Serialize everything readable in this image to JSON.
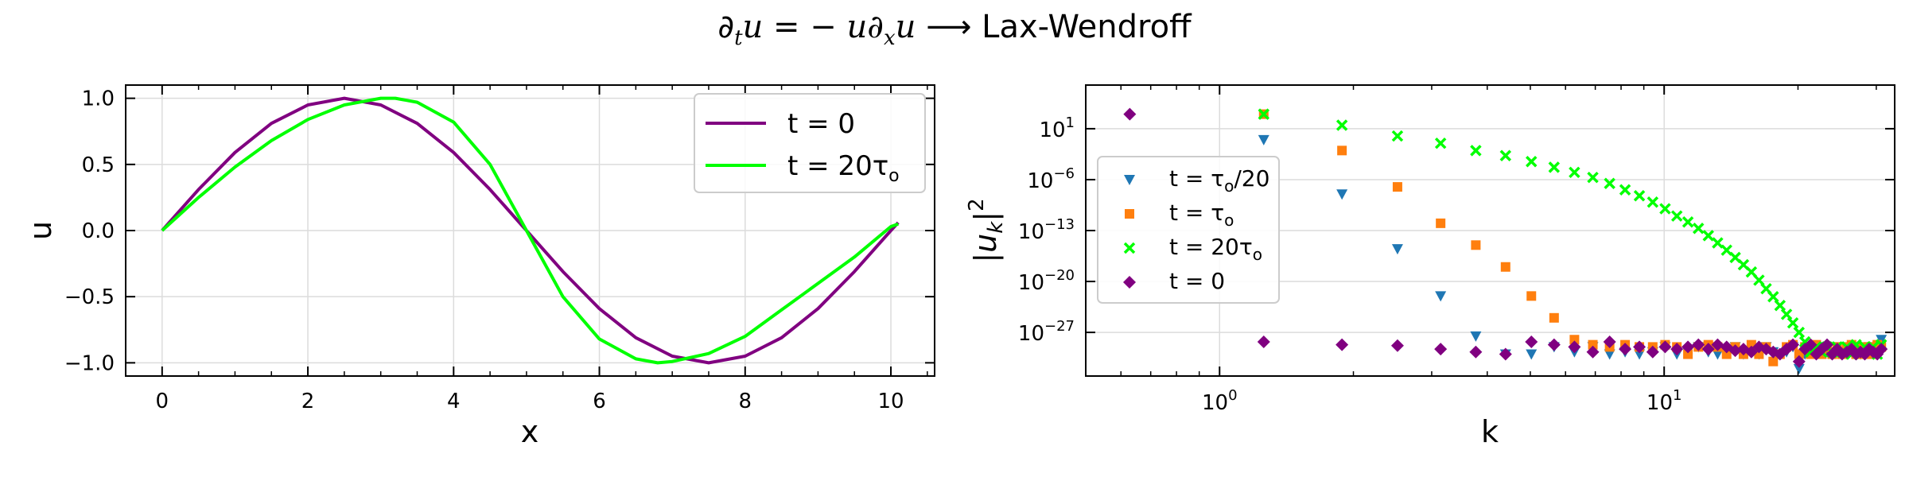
{
  "figure_title": {
    "lhs": "∂",
    "lhs_sub": "t",
    "lhs_var": "u",
    "eq": " = − ",
    "rhs_var1": "u∂",
    "rhs_sub": "x",
    "rhs_var2": "u",
    "arrow": "⟶",
    "method": "Lax-Wendroff"
  },
  "chart_data": [
    {
      "type": "line",
      "xlabel": "x",
      "ylabel": "u",
      "xlim": [
        -0.5,
        10.6
      ],
      "ylim": [
        -1.1,
        1.1
      ],
      "xticks": [
        0,
        2,
        4,
        6,
        8,
        10
      ],
      "xtick_labels": [
        "0",
        "2",
        "4",
        "6",
        "8",
        "10"
      ],
      "yticks": [
        1.0,
        0.5,
        0.0,
        -0.5,
        -1.0
      ],
      "ytick_labels": [
        "1.0",
        "0.5",
        "0.0",
        "−0.5",
        "−1.0"
      ],
      "grid": true,
      "legend_placement": "top-right",
      "series": [
        {
          "name": "t = 0",
          "color": "#800080",
          "x": [
            0,
            0.5,
            1,
            1.5,
            2,
            2.5,
            3,
            3.5,
            4,
            4.5,
            5,
            5.5,
            6,
            6.5,
            7,
            7.5,
            8,
            8.5,
            9,
            9.5,
            10,
            10.1
          ],
          "y": [
            0,
            0.31,
            0.59,
            0.81,
            0.95,
            1.0,
            0.95,
            0.81,
            0.59,
            0.31,
            0.0,
            -0.31,
            -0.59,
            -0.81,
            -0.95,
            -1.0,
            -0.95,
            -0.81,
            -0.59,
            -0.31,
            0.0,
            0.06
          ]
        },
        {
          "name": "t = 20τo",
          "color": "#00ff00",
          "x": [
            0,
            0.5,
            1,
            1.5,
            2,
            2.5,
            3,
            3.2,
            3.5,
            4,
            4.5,
            5,
            5.5,
            6,
            6.5,
            6.8,
            7,
            7.5,
            8,
            8.5,
            9,
            9.5,
            10,
            10.1
          ],
          "y": [
            0,
            0.25,
            0.48,
            0.68,
            0.84,
            0.95,
            1.0,
            1.0,
            0.97,
            0.82,
            0.5,
            0.0,
            -0.5,
            -0.82,
            -0.97,
            -1.0,
            -0.99,
            -0.93,
            -0.8,
            -0.6,
            -0.4,
            -0.2,
            0.03,
            0.05
          ]
        }
      ]
    },
    {
      "type": "scatter",
      "xlabel": "k",
      "ylabel": "|uk|2",
      "xscale": "log",
      "yscale": "log",
      "xlim": [
        0.5,
        33
      ],
      "ylim": [
        1e-33,
        10000000.0
      ],
      "xtick_labels": [
        "10^0",
        "10^1"
      ],
      "ytick_labels": [
        "10^1",
        "10^-6",
        "10^-13",
        "10^-20",
        "10^-27"
      ],
      "grid": true,
      "legend_placement": "center-left",
      "series": [
        {
          "name": "t = τo/20",
          "marker": "triangle-down",
          "color": "#1f77b4",
          "x": [
            1.257,
            1.885,
            2.513,
            3.142,
            3.77,
            4.398,
            5.027,
            5.655,
            6.283,
            6.912,
            7.54,
            8.168,
            8.796,
            9.425,
            10.05,
            10.68,
            11.31,
            11.94,
            12.57,
            13.19,
            13.82,
            14.45,
            15.08,
            15.71,
            16.34,
            16.96,
            17.59,
            18.22,
            18.85,
            19.48,
            20.11,
            20.73,
            21.36,
            21.99,
            22.62,
            23.25,
            23.88,
            24.5,
            25.13,
            25.76,
            26.39,
            27.02,
            27.65,
            28.27,
            28.9,
            29.53,
            30.16,
            30.79
          ],
          "y": [
            0.3,
            1e-08,
            3e-16,
            1e-22,
            3e-28,
            1e-30,
            1e-30,
            1e-29,
            2e-30,
            1e-29,
            1e-30,
            2e-30,
            1e-30,
            2e-30,
            1e-29,
            1e-30,
            2e-30,
            1e-29,
            2e-30,
            1e-30,
            2e-30,
            1e-29,
            1e-30,
            2e-30,
            1e-30,
            1e-29,
            2e-30,
            1e-30,
            2e-30,
            1e-29,
            1e-32,
            1e-30,
            2e-30,
            1e-30,
            1e-29,
            2e-30,
            1e-30,
            1e-29,
            2e-30,
            1e-30,
            2e-30,
            1e-29,
            1e-30,
            2e-30,
            1e-29,
            1e-30,
            2e-30,
            1e-28
          ]
        },
        {
          "name": "t = τo",
          "marker": "square",
          "color": "#ff7f0e",
          "x": [
            1.257,
            1.885,
            2.513,
            3.142,
            3.77,
            4.398,
            5.027,
            5.655,
            6.283,
            6.912,
            7.54,
            8.168,
            8.796,
            9.425,
            10.05,
            10.68,
            11.31,
            11.94,
            12.57,
            13.19,
            13.82,
            14.45,
            15.08,
            15.71,
            16.34,
            16.96,
            17.59,
            18.22,
            18.85,
            19.48,
            20.11,
            20.73,
            21.36,
            21.99,
            22.62,
            23.25,
            23.88,
            24.5,
            25.13,
            25.76,
            26.39,
            27.02,
            27.65,
            28.27,
            28.9,
            29.53,
            30.16,
            30.79
          ],
          "y": [
            1000.0,
            0.01,
            1e-07,
            1e-12,
            1e-15,
            1e-18,
            1e-22,
            1e-25,
            1e-28,
            2e-29,
            1e-29,
            2e-29,
            1e-29,
            1e-29,
            2e-29,
            1e-29,
            1e-30,
            1e-29,
            2e-29,
            1e-29,
            1e-30,
            1e-29,
            1e-30,
            2e-29,
            1e-30,
            1e-29,
            1e-31,
            1e-30,
            1e-29,
            2e-29,
            1e-30,
            1e-29,
            1e-30,
            2e-29,
            1e-30,
            1e-29,
            1e-30,
            1e-29,
            1e-30,
            1e-29,
            2e-29,
            1e-30,
            1e-29,
            1e-30,
            1e-29,
            1e-30,
            2e-29,
            1e-29
          ]
        },
        {
          "name": "t = 20τo",
          "marker": "x",
          "color": "#00ff00",
          "x": [
            1.257,
            1.885,
            2.513,
            3.142,
            3.77,
            4.398,
            5.027,
            5.655,
            6.283,
            6.912,
            7.54,
            8.168,
            8.796,
            9.425,
            10.05,
            10.68,
            11.31,
            11.94,
            12.57,
            13.19,
            13.82,
            14.45,
            15.08,
            15.71,
            16.34,
            16.96,
            17.59,
            18.22,
            18.85,
            19.48,
            20.11,
            20.73,
            21.36,
            21.99,
            22.62,
            23.25,
            23.88,
            24.5,
            25.13,
            25.76,
            26.39,
            27.02,
            27.65,
            28.27,
            28.9,
            29.53,
            30.16,
            30.79
          ],
          "y": [
            1000.0,
            30.0,
            1,
            0.1,
            0.01,
            0.002,
            0.0003,
            5e-05,
            1e-05,
            2e-06,
            3e-07,
            4e-08,
            6e-09,
            8e-10,
            1e-10,
            1e-11,
            1.5e-12,
            2e-13,
            2e-14,
            2e-15,
            2e-16,
            2e-17,
            2e-18,
            2e-19,
            1.5e-20,
            1e-21,
            8e-23,
            5e-24,
            3e-25,
            2e-26,
            1e-27,
            5e-29,
            2e-30,
            1e-29,
            2e-30,
            1e-29,
            2e-30,
            1e-29,
            2e-30,
            1e-29,
            1e-30,
            2e-29,
            1e-30,
            1e-29,
            2e-30,
            1e-29,
            1e-30,
            2e-29
          ]
        },
        {
          "name": "t = 0",
          "marker": "diamond",
          "color": "#800080",
          "x": [
            0.628,
            1.257,
            1.885,
            2.513,
            3.142,
            3.77,
            4.398,
            5.027,
            5.655,
            6.283,
            6.912,
            7.54,
            8.168,
            8.796,
            9.425,
            10.05,
            10.68,
            11.31,
            11.94,
            12.57,
            13.19,
            13.82,
            14.45,
            15.08,
            15.71,
            16.34,
            16.96,
            17.59,
            18.22,
            18.85,
            19.48,
            20.11,
            20.73,
            21.36,
            21.99,
            22.62,
            23.25,
            23.88,
            24.5,
            25.13,
            25.76,
            26.39,
            27.02,
            27.65,
            28.27,
            28.9,
            29.53,
            30.16,
            30.79
          ],
          "y": [
            1000.0,
            5e-29,
            2e-29,
            1.5e-29,
            5e-30,
            2e-30,
            1e-30,
            5e-29,
            2e-29,
            1e-29,
            2e-30,
            5e-29,
            5e-30,
            1e-29,
            2e-30,
            1e-29,
            5e-30,
            1e-29,
            2e-29,
            5e-30,
            2e-29,
            1e-29,
            3e-30,
            5e-30,
            2e-30,
            1e-29,
            5e-30,
            2e-30,
            1e-30,
            5e-30,
            2e-29,
            1e-31,
            5e-30,
            2e-29,
            1e-30,
            5e-30,
            2e-29,
            1e-30,
            5e-30,
            1e-30,
            2e-30,
            5e-30,
            1e-30,
            2e-30,
            1e-30,
            5e-30,
            2e-30,
            1e-30,
            5e-30
          ]
        }
      ]
    }
  ]
}
